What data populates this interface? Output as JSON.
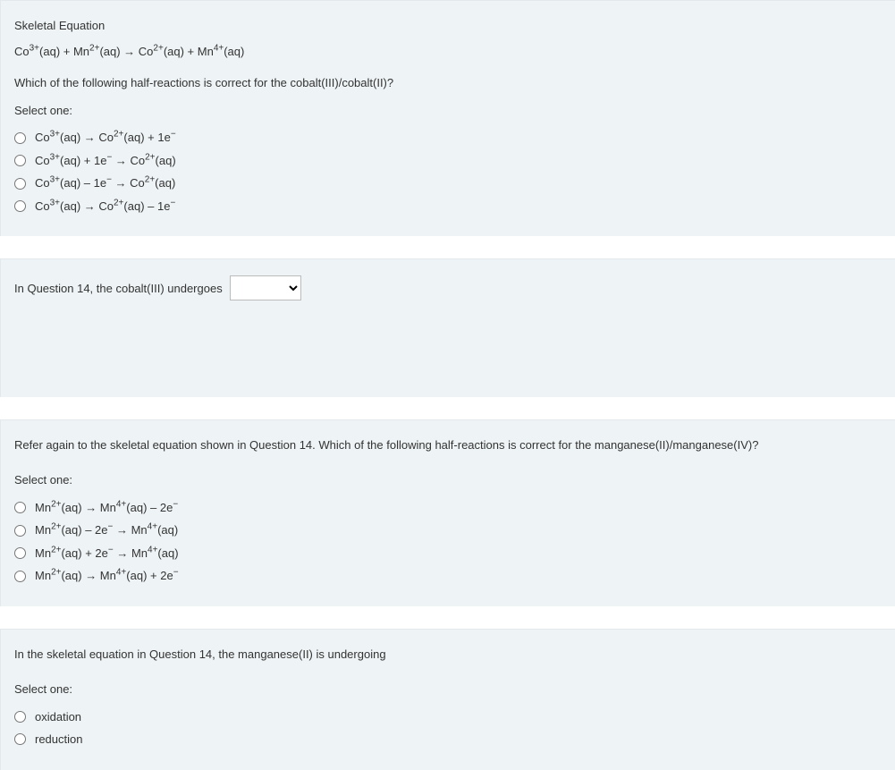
{
  "q14": {
    "heading": "Skeletal Equation",
    "equation_html": "Co<sup>3+</sup>(aq) + Mn<sup>2+</sup>(aq) → Co<sup>2+</sup>(aq) + Mn<sup>4+</sup>(aq)",
    "question": "Which of the following half-reactions is correct for the cobalt(III)/cobalt(II)?",
    "prompt": "Select one:",
    "options": [
      "Co<sup>3+</sup>(aq) → Co<sup>2+</sup>(aq) + 1e<sup>−</sup>",
      "Co<sup>3+</sup>(aq) + 1e<sup>−</sup> → Co<sup>2+</sup>(aq)",
      "Co<sup>3+</sup>(aq) – 1e<sup>−</sup> → Co<sup>2+</sup>(aq)",
      "Co<sup>3+</sup>(aq) → Co<sup>2+</sup>(aq) – 1e<sup>−</sup>"
    ]
  },
  "q15": {
    "text": "In Question 14, the cobalt(III) undergoes",
    "selected": ""
  },
  "q16": {
    "question": "Refer again to the skeletal equation shown in Question 14. Which of the following half-reactions is correct for the manganese(II)/manganese(IV)?",
    "prompt": "Select one:",
    "options": [
      "Mn<sup>2+</sup>(aq) → Mn<sup>4+</sup>(aq) – 2e<sup>−</sup>",
      "Mn<sup>2+</sup>(aq) – 2e<sup>−</sup> → Mn<sup>4+</sup>(aq)",
      "Mn<sup>2+</sup>(aq) + 2e<sup>−</sup> → Mn<sup>4+</sup>(aq)",
      "Mn<sup>2+</sup>(aq) → Mn<sup>4+</sup>(aq) + 2e<sup>−</sup>"
    ]
  },
  "q17": {
    "question": "In the skeletal equation in Question 14, the manganese(II) is undergoing",
    "prompt": "Select one:",
    "options": [
      "oxidation",
      "reduction"
    ]
  },
  "colors": {
    "block_bg": "#eef3f5",
    "block_border": "#e2e8ec",
    "text": "#333333"
  }
}
